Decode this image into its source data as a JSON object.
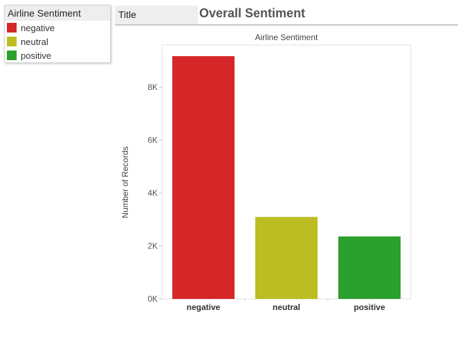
{
  "legend": {
    "title": "Airline Sentiment",
    "items": [
      {
        "label": "negative",
        "color": "#d62728"
      },
      {
        "label": "neutral",
        "color": "#bcbd22"
      },
      {
        "label": "positive",
        "color": "#2ca02c"
      }
    ]
  },
  "header": {
    "tab_label": "Title",
    "title": "Overall Sentiment"
  },
  "chart_data": {
    "type": "bar",
    "title": "Airline Sentiment",
    "xlabel": "",
    "ylabel": "Number of Records",
    "categories": [
      "negative",
      "neutral",
      "positive"
    ],
    "values": [
      9178,
      3099,
      2363
    ],
    "colors": [
      "#d62728",
      "#bcbd22",
      "#2ca02c"
    ],
    "ylim": [
      0,
      9600
    ],
    "yticks": [
      0,
      2000,
      4000,
      6000,
      8000
    ],
    "ytick_labels": [
      "0K",
      "2K",
      "4K",
      "6K",
      "8K"
    ],
    "grid": false,
    "legend": "top-left"
  }
}
